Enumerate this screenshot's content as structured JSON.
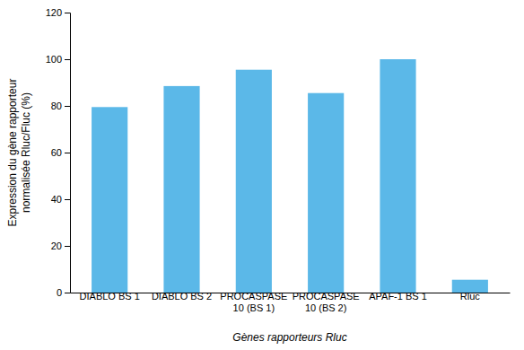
{
  "chart_data": {
    "type": "bar",
    "categories": [
      "DIABLO BS 1",
      "DIABLO BS 2",
      "PROCASPASE\n10 (BS 1)",
      "PROCASPASE\n10 (BS 2)",
      "APAF-1 BS 1",
      "Rluc"
    ],
    "values": [
      79.5,
      88.5,
      95.5,
      85.5,
      100.0,
      5.5
    ],
    "color": "#5BB8E8",
    "ylabel": "Expression du gène rapporteur\nnormalisée Rluc/Fluc (%)",
    "xlabel": "Gènes rapporteurs Rluc",
    "ylim": [
      0,
      120
    ],
    "yticks": [
      0,
      20,
      40,
      60,
      80,
      100,
      120
    ],
    "grid": false
  }
}
